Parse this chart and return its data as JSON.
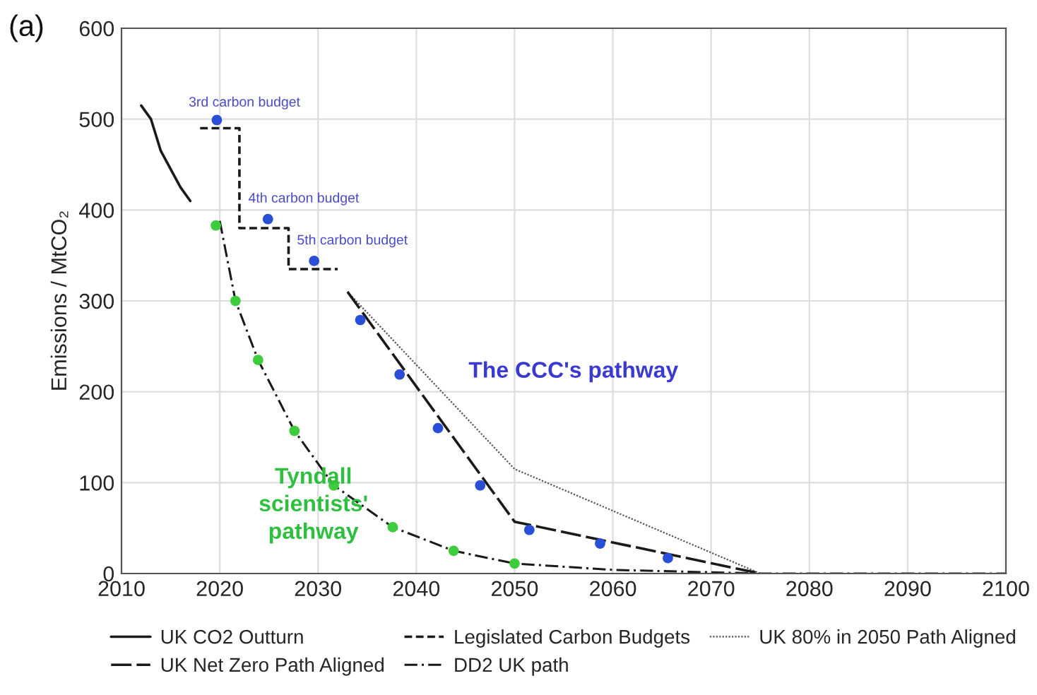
{
  "chart_data": {
    "type": "line",
    "ylabel": "Emissions / MtCO₂",
    "xlim": [
      2010,
      2100
    ],
    "xticks": [
      2010,
      2020,
      2030,
      2040,
      2050,
      2060,
      2070,
      2080,
      2090,
      2100
    ],
    "ylim": [
      0,
      600
    ],
    "yticks": [
      0,
      100,
      200,
      300,
      400,
      500,
      600
    ],
    "grid": true,
    "legend": "bottom",
    "series": [
      {
        "name": "UK CO2 Outturn",
        "color": "#1a1a1a",
        "line_style": "solid",
        "x": [
          2012,
          2013,
          2014,
          2015,
          2016,
          2017
        ],
        "values": [
          515,
          500,
          465,
          445,
          425,
          410
        ]
      },
      {
        "name": "Legislated Carbon Budgets",
        "color": "#1a1a1a",
        "line_style": "dashed",
        "x": [
          2018,
          2022,
          2022,
          2027,
          2027,
          2032
        ],
        "values": [
          490,
          490,
          380,
          380,
          335,
          335
        ]
      },
      {
        "name": "UK 80% in 2050 Path Aligned",
        "color": "#555555",
        "line_style": "dotted",
        "x": [
          2033,
          2050,
          2075
        ],
        "values": [
          310,
          115,
          0
        ]
      },
      {
        "name": "UK Net Zero Path Aligned",
        "color": "#1a1a1a",
        "line_style": "longdash",
        "x": [
          2033,
          2050,
          2075
        ],
        "values": [
          310,
          57,
          0
        ]
      },
      {
        "name": "DD2 UK path",
        "color": "#1a1a1a",
        "line_style": "dashdot",
        "x": [
          2020,
          2021.6,
          2023.9,
          2027.6,
          2031.6,
          2037.6,
          2043.8,
          2050,
          2060,
          2075,
          2100
        ],
        "values": [
          388,
          300,
          235,
          157,
          97,
          51,
          25,
          11,
          4,
          0,
          0
        ]
      },
      {
        "type": "scatter",
        "color": "#2a4fd6",
        "marker": "circle",
        "x": [
          2019.7,
          2024.9,
          2029.6,
          2034.3,
          2038.3,
          2042.2,
          2046.5,
          2051.5,
          2058.7,
          2065.6
        ],
        "values": [
          499,
          390,
          344,
          279,
          219,
          160,
          97,
          48,
          33,
          17
        ]
      },
      {
        "type": "scatter",
        "color": "#3ccc3c",
        "marker": "circle",
        "x": [
          2019.6,
          2021.6,
          2023.9,
          2027.6,
          2031.6,
          2037.6,
          2043.8,
          2050
        ],
        "values": [
          383,
          300,
          235,
          157,
          97,
          51,
          25,
          11
        ]
      }
    ],
    "annotations": [
      "(a)",
      "3rd carbon budget",
      "4th carbon budget",
      "5th carbon budget",
      "The CCC's pathway",
      "Tyndall\nscientists'\npathway"
    ]
  }
}
